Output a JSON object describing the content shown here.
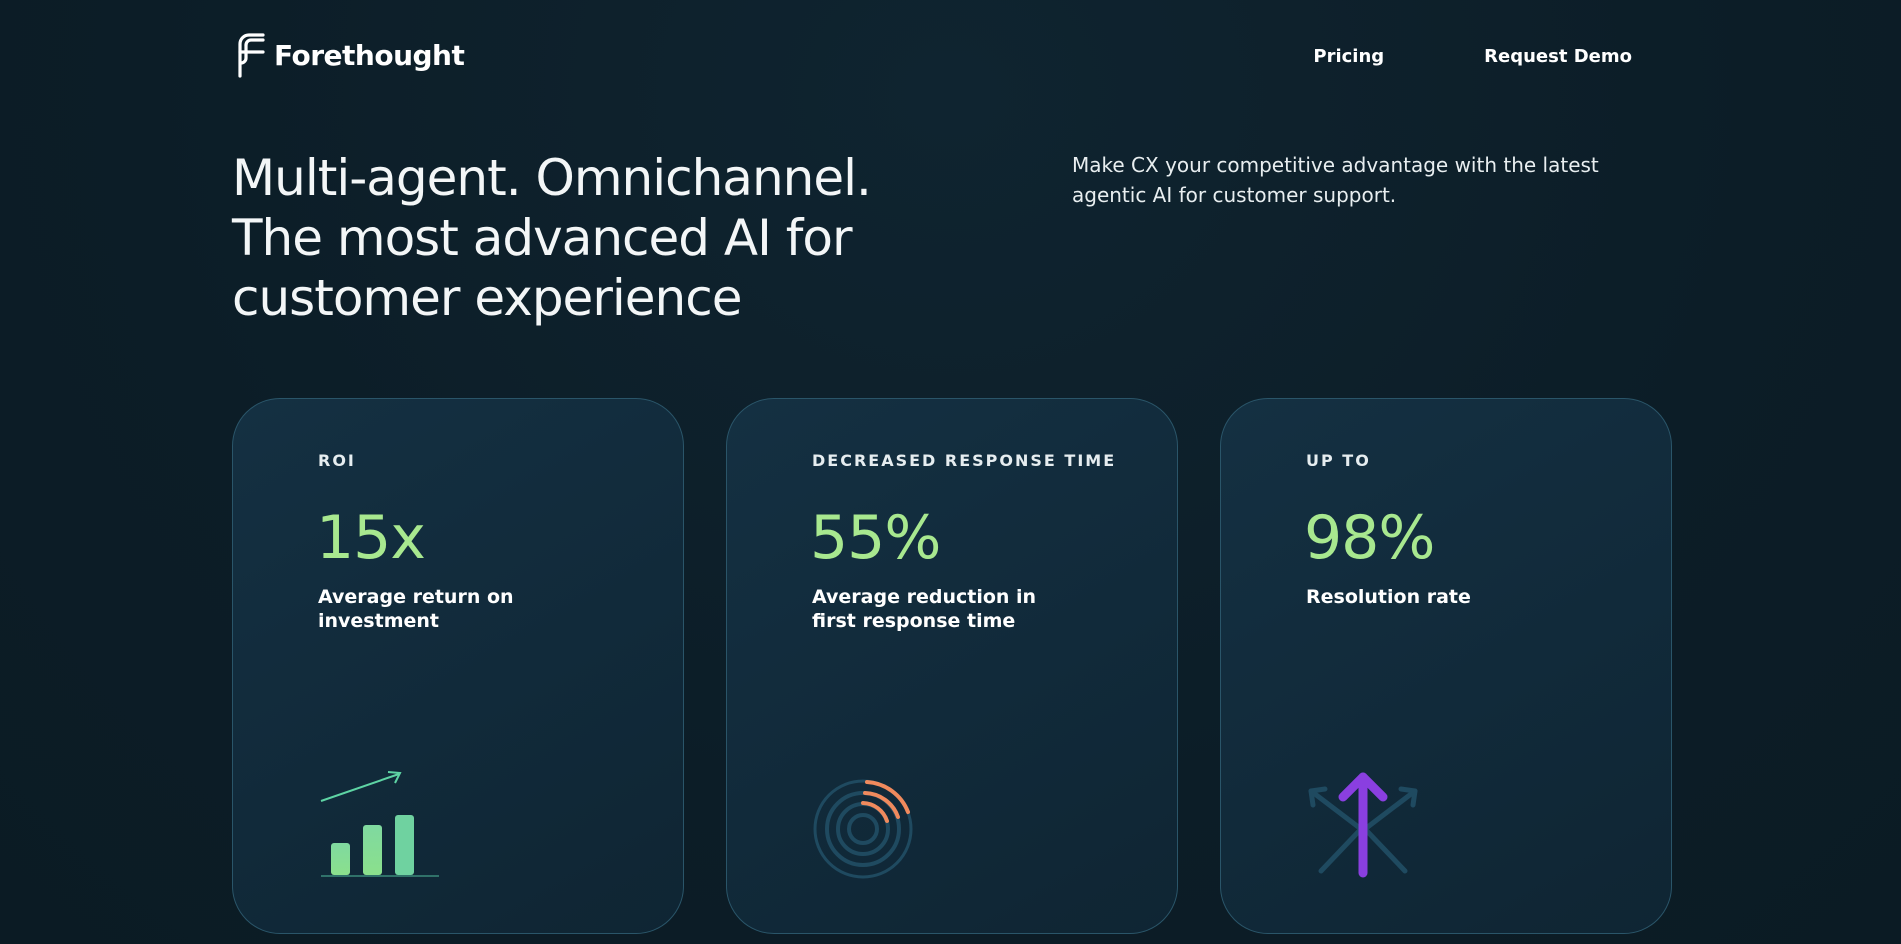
{
  "header": {
    "logo_text": "Forethought",
    "nav": [
      {
        "label": "Pricing"
      },
      {
        "label": "Request Demo"
      }
    ]
  },
  "hero": {
    "headline_lines": [
      "Multi-agent. Omnichannel.",
      "The most advanced AI for",
      "customer experience"
    ],
    "subcopy": "Make CX your competitive advantage with the latest agentic AI for customer support."
  },
  "cards": [
    {
      "label": "ROI",
      "value": "15x",
      "description": "Average return on investment",
      "icon": "growth-bar-chart-icon"
    },
    {
      "label": "DECREASED RESPONSE TIME",
      "value": "55%",
      "description": "Average reduction in first response time",
      "icon": "radar-signal-icon"
    },
    {
      "label": "UP TO",
      "value": "98%",
      "description": "Resolution rate",
      "icon": "arrows-up-icon"
    }
  ],
  "colors": {
    "background": "#0d1f2a",
    "accent_green": "#a8e88f",
    "card_border": "#2a5569",
    "orange": "#f08a5d",
    "purple": "#8a3fe0"
  }
}
